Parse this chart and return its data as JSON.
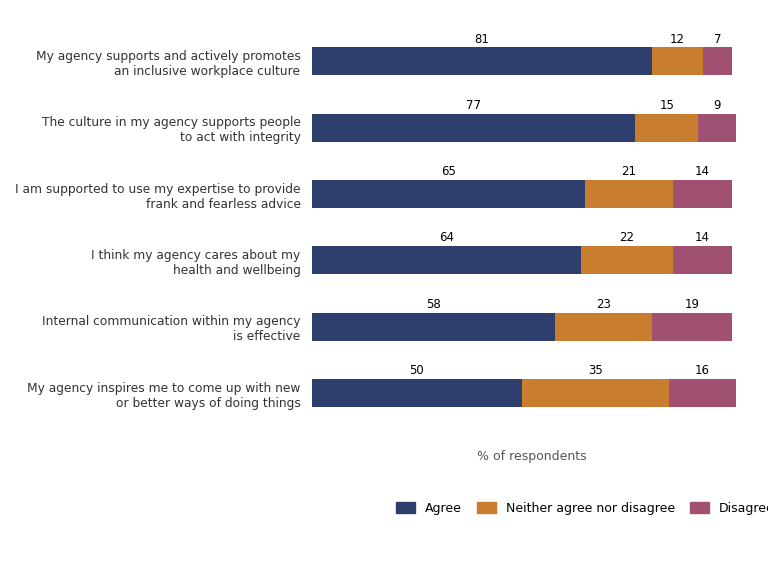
{
  "categories": [
    "My agency supports and actively promotes\nan inclusive workplace culture",
    "The culture in my agency supports people\nto act with integrity",
    "I am supported to use my expertise to provide\nfrank and fearless advice",
    "I think my agency cares about my\nhealth and wellbeing",
    "Internal communication within my agency\nis effective",
    "My agency inspires me to come up with new\nor better ways of doing things"
  ],
  "agree": [
    81,
    77,
    65,
    64,
    58,
    50
  ],
  "neutral": [
    12,
    15,
    21,
    22,
    23,
    35
  ],
  "disagree": [
    7,
    9,
    14,
    14,
    19,
    16
  ],
  "agree_color": "#2e3f6e",
  "neutral_color": "#c87d2f",
  "disagree_color": "#a05070",
  "xlabel": "% of respondents",
  "legend_labels": [
    "Agree",
    "Neither agree nor disagree",
    "Disagree"
  ],
  "background_color": "#ffffff",
  "bar_height": 0.42
}
